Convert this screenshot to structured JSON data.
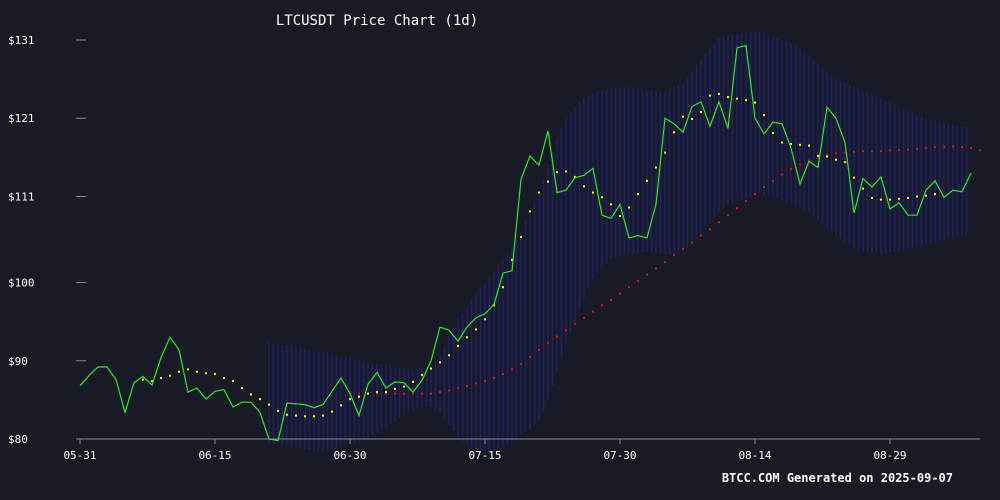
{
  "chart_data": {
    "type": "line",
    "title": "LTCUSDT Price Chart (1d)",
    "footer": "BTCC.COM Generated on 2025-09-07",
    "x_tick_labels": [
      "05-31",
      "06-15",
      "06-30",
      "07-15",
      "07-30",
      "08-14",
      "08-29"
    ],
    "x_tick_days": [
      0,
      15,
      30,
      45,
      60,
      75,
      90
    ],
    "y_tick_labels": [
      "$80",
      "$90",
      "$100",
      "$111",
      "$121",
      "$131"
    ],
    "y_tick_values": [
      80,
      90,
      100,
      111,
      121,
      131
    ],
    "ylim": [
      80,
      131
    ],
    "x_range_days": [
      0,
      100
    ],
    "grid": false,
    "colors": {
      "background": "#181b25",
      "price": "#2ee62e",
      "sma20": "#ffff00",
      "sma50": "#dd1111",
      "bands": "#1f1f6e",
      "text": "#ffffff",
      "axis": "#888888"
    },
    "series": [
      {
        "name": "Close",
        "start_day": 0,
        "values": [
          86.8,
          88.1,
          89.2,
          89.2,
          87.6,
          83.4,
          87.2,
          88.0,
          86.9,
          90.4,
          93.0,
          91.4,
          86.0,
          86.5,
          85.1,
          86.1,
          86.3,
          84.1,
          84.7,
          84.7,
          83.4,
          80.0,
          79.8,
          84.6,
          84.5,
          84.4,
          84.0,
          84.4,
          86.1,
          87.8,
          85.8,
          83.0,
          87.0,
          88.5,
          86.5,
          87.3,
          87.2,
          86.0,
          87.5,
          90.0,
          94.3,
          93.9,
          92.5,
          94.3,
          95.5,
          96.0,
          97.2,
          101.2,
          101.5,
          113.2,
          116.2,
          115.0,
          119.4,
          111.5,
          111.8,
          113.4,
          113.7,
          114.6,
          108.6,
          108.2,
          110.0,
          105.7,
          106.0,
          105.7,
          110.0,
          121.0,
          120.3,
          119.2,
          122.5,
          123.1,
          120.0,
          123.1,
          119.7,
          130.0,
          130.3,
          121.0,
          119.0,
          120.5,
          120.3,
          117.2,
          112.6,
          115.5,
          114.7,
          122.4,
          121.0,
          117.9,
          108.9,
          113.3,
          112.2,
          113.5,
          109.4,
          110.2,
          108.6,
          108.6,
          111.8,
          113.0,
          110.9,
          111.8,
          111.6,
          114.0
        ]
      },
      {
        "name": "SMA20",
        "start_day": 7,
        "values": [
          87.6,
          87.4,
          87.8,
          88.1,
          88.6,
          88.9,
          88.6,
          88.4,
          88.3,
          87.8,
          87.4,
          86.5,
          85.7,
          85.1,
          84.4,
          83.6,
          83.1,
          83.0,
          82.9,
          82.9,
          83.0,
          83.5,
          84.3,
          85.1,
          85.4,
          85.8,
          86.0,
          86.0,
          86.4,
          86.7,
          87.3,
          88.2,
          89.0,
          89.8,
          90.7,
          91.9,
          93.0,
          94.0,
          95.3,
          97.1,
          99.4,
          102.9,
          105.8,
          109.1,
          111.5,
          112.9,
          114.1,
          114.2,
          113.5,
          112.3,
          111.5,
          110.9,
          110.0,
          108.5,
          109.6,
          111.3,
          113.0,
          114.7,
          116.6,
          119.2,
          121.2,
          120.9,
          121.8,
          123.9,
          124.1,
          123.7,
          123.5,
          123.3,
          123.0,
          121.4,
          119.1,
          117.9,
          117.7,
          117.6,
          117.5,
          116.2,
          116.1,
          115.7,
          115.4,
          113.4,
          112.0,
          110.8,
          110.6,
          110.6,
          110.7,
          110.8,
          111.0,
          111.1,
          111.3
        ]
      },
      {
        "name": "SMA50",
        "start_day": 30,
        "values": [
          86.0,
          85.8,
          85.8,
          85.8,
          85.8,
          85.8,
          85.8,
          85.8,
          85.8,
          85.8,
          86.0,
          86.2,
          86.5,
          86.8,
          87.1,
          87.4,
          87.8,
          88.3,
          88.9,
          89.6,
          90.5,
          91.4,
          92.3,
          93.1,
          93.9,
          94.7,
          95.5,
          96.3,
          97.1,
          97.8,
          98.6,
          99.4,
          100.2,
          101.0,
          101.8,
          102.6,
          103.5,
          104.3,
          105.1,
          106.0,
          106.8,
          107.7,
          108.6,
          109.5,
          110.4,
          111.3,
          112.2,
          113.0,
          113.8,
          114.5,
          115.1,
          115.6,
          116.0,
          116.3,
          116.5,
          116.6,
          116.7,
          116.8,
          116.8,
          116.8,
          116.9,
          116.9,
          117.0,
          117.1,
          117.2,
          117.3,
          117.3,
          117.4,
          117.3,
          117.2,
          116.9
        ]
      },
      {
        "name": "Bollinger Upper",
        "start_day": 21,
        "values": [
          92.4,
          92.1,
          92.0,
          91.9,
          91.5,
          91.3,
          91.1,
          90.9,
          90.6,
          90.4,
          90.0,
          89.8,
          89.6,
          89.5,
          89.2,
          89.0,
          88.8,
          88.9,
          89.3,
          90.6,
          93.2,
          95.4,
          96.9,
          98.5,
          100.0,
          101.5,
          103.0,
          104.5,
          106.5,
          109.0,
          111.5,
          115.0,
          118.5,
          121.0,
          122.5,
          123.5,
          124.2,
          124.6,
          124.8,
          124.9,
          125.0,
          124.8,
          124.6,
          124.5,
          124.4,
          125.0,
          125.5,
          127.0,
          128.5,
          130.0,
          131.2,
          131.6,
          131.8,
          132.0,
          132.0,
          131.9,
          131.5,
          131.0,
          130.5,
          130.0,
          129.0,
          128.0,
          127.0,
          126.0,
          125.5,
          125.0,
          124.5,
          124.0,
          123.5,
          123.0,
          122.5,
          122.0,
          121.5,
          121.0,
          120.8,
          120.5,
          120.2,
          120.0,
          119.8
        ]
      },
      {
        "name": "Bollinger Lower",
        "start_day": 21,
        "values": [
          79.5,
          79.3,
          79.1,
          78.9,
          78.7,
          78.5,
          78.6,
          78.8,
          79.0,
          79.4,
          79.8,
          80.2,
          80.8,
          81.5,
          82.3,
          83.1,
          83.7,
          84.0,
          84.1,
          83.4,
          81.8,
          80.2,
          79.2,
          78.6,
          78.4,
          78.6,
          79.0,
          79.7,
          80.6,
          81.3,
          82.3,
          85.0,
          88.5,
          92.0,
          95.0,
          98.0,
          100.5,
          102.0,
          103.0,
          103.5,
          103.7,
          103.8,
          103.9,
          103.7,
          103.6,
          103.5,
          104.0,
          105.0,
          106.0,
          107.5,
          109.0,
          110.0,
          110.5,
          110.8,
          111.0,
          111.2,
          111.0,
          110.5,
          110.0,
          109.5,
          109.0,
          108.0,
          107.0,
          106.0,
          105.2,
          104.5,
          104.0,
          103.8,
          103.7,
          103.8,
          104.0,
          104.3,
          104.6,
          104.9,
          105.2,
          105.5,
          105.8,
          106.0,
          106.2
        ]
      }
    ]
  }
}
